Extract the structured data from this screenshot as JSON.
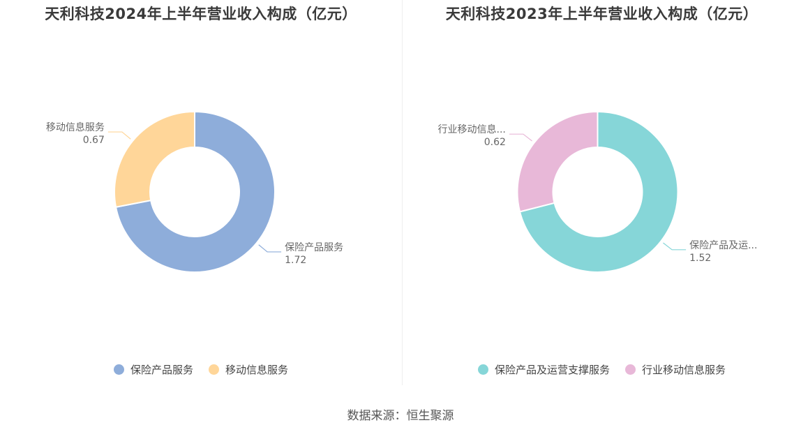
{
  "chart_data": [
    {
      "type": "pie",
      "title": "天利科技2024年上半年营业收入构成（亿元）",
      "series": [
        {
          "name": "保险产品服务",
          "value": 1.72,
          "label": "保险产品服务",
          "value_label": "1.72",
          "color": "#8eadda"
        },
        {
          "name": "移动信息服务",
          "value": 0.67,
          "label": "移动信息服务",
          "value_label": "0.67",
          "color": "#ffd699"
        }
      ],
      "legend": [
        "保险产品服务",
        "移动信息服务"
      ],
      "legend_position": "bottom"
    },
    {
      "type": "pie",
      "title": "天利科技2023年上半年营业收入构成（亿元）",
      "series": [
        {
          "name": "保险产品及运营支撑服务",
          "value": 1.52,
          "label": "保险产品及运...",
          "value_label": "1.52",
          "color": "#86d6d8"
        },
        {
          "name": "行业移动信息服务",
          "value": 0.62,
          "label": "行业移动信息...",
          "value_label": "0.62",
          "color": "#e8b8d8"
        }
      ],
      "legend": [
        "保险产品及运营支撑服务",
        "行业移动信息服务"
      ],
      "legend_position": "bottom"
    }
  ],
  "footer": {
    "source": "数据来源：恒生聚源"
  }
}
